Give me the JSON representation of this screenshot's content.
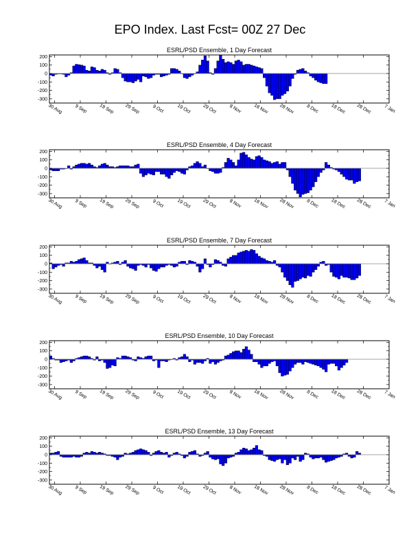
{
  "title": "EPO Index. Last Fcst= 00Z 27 Dec",
  "colors": {
    "bar_fill": "#0000ee",
    "bar_edge": "#000000",
    "axis": "#000000",
    "zero_line": "#888888"
  },
  "chart_data": [
    {
      "type": "bar",
      "title": "ESRL/PSD Ensemble, 1 Day Forecast",
      "ylim": [
        -350,
        220
      ],
      "yticks": [
        -300,
        -200,
        -100,
        0,
        100,
        200
      ],
      "x_start": "2013-08-28",
      "xtick_labels": [
        "30 Aug",
        "9 Sep",
        "19 Sep",
        "29 Sep",
        "9 Oct",
        "19 Oct",
        "29 Oct",
        "8 Nov",
        "18 Nov",
        "28 Nov",
        "8 Dec",
        "18 Dec",
        "28 Dec",
        "7 Jan"
      ],
      "values": [
        -20,
        -30,
        -10,
        -5,
        -5,
        -10,
        -40,
        -20,
        10,
        90,
        110,
        105,
        100,
        90,
        40,
        30,
        80,
        70,
        40,
        30,
        50,
        40,
        10,
        -10,
        10,
        60,
        50,
        10,
        -50,
        -90,
        -100,
        -100,
        -110,
        -90,
        -70,
        -100,
        -30,
        -40,
        -60,
        -50,
        -20,
        -10,
        -10,
        -40,
        -30,
        -20,
        -10,
        60,
        60,
        50,
        30,
        0,
        -50,
        -60,
        -40,
        -20,
        0,
        20,
        100,
        160,
        210,
        150,
        10,
        -10,
        60,
        150,
        220,
        170,
        130,
        140,
        130,
        110,
        150,
        160,
        140,
        100,
        110,
        110,
        100,
        90,
        80,
        70,
        60,
        -50,
        -150,
        -230,
        -260,
        -310,
        -300,
        -300,
        -260,
        -240,
        -210,
        -150,
        -60,
        -10,
        40,
        50,
        60,
        30,
        10,
        -30,
        -50,
        -80,
        -100,
        -110,
        -120,
        -120
      ]
    },
    {
      "type": "bar",
      "title": "ESRL/PSD Ensemble, 4 Day Forecast",
      "ylim": [
        -350,
        220
      ],
      "yticks": [
        -300,
        -200,
        -100,
        0,
        100,
        200
      ],
      "x_start": "2013-08-28",
      "xtick_labels": [
        "30 Aug",
        "9 Sep",
        "19 Sep",
        "29 Sep",
        "9 Oct",
        "19 Oct",
        "29 Oct",
        "8 Nov",
        "18 Nov",
        "28 Nov",
        "8 Dec",
        "18 Dec",
        "28 Dec",
        "7 Jan"
      ],
      "values": [
        -20,
        -30,
        -30,
        -30,
        -10,
        -10,
        0,
        30,
        -10,
        20,
        40,
        50,
        60,
        60,
        50,
        60,
        40,
        20,
        10,
        30,
        50,
        60,
        40,
        20,
        20,
        10,
        20,
        30,
        30,
        30,
        30,
        20,
        20,
        40,
        50,
        -60,
        -100,
        -80,
        -60,
        -70,
        -80,
        -40,
        -40,
        -70,
        -70,
        -100,
        -120,
        -80,
        -50,
        -30,
        -40,
        -60,
        -70,
        -20,
        20,
        30,
        60,
        80,
        60,
        20,
        40,
        0,
        -30,
        -40,
        -60,
        -60,
        -50,
        10,
        70,
        120,
        100,
        70,
        30,
        100,
        180,
        190,
        160,
        130,
        110,
        100,
        140,
        150,
        130,
        100,
        90,
        80,
        60,
        70,
        80,
        50,
        70,
        70,
        -20,
        -100,
        -180,
        -260,
        -300,
        -340,
        -310,
        -300,
        -290,
        -260,
        -220,
        -160,
        -100,
        -50,
        -20,
        70,
        40,
        10,
        -10,
        -20,
        -40,
        -70,
        -100,
        -130,
        -140,
        -140,
        -180,
        -160,
        -150
      ]
    },
    {
      "type": "bar",
      "title": "ESRL/PSD Ensemble, 7 Day Forecast",
      "ylim": [
        -350,
        220
      ],
      "yticks": [
        -300,
        -200,
        -100,
        0,
        100,
        200
      ],
      "x_start": "2013-08-28",
      "xtick_labels": [
        "30 Aug",
        "9 Sep",
        "19 Sep",
        "29 Sep",
        "9 Oct",
        "19 Oct",
        "29 Oct",
        "8 Nov",
        "18 Nov",
        "28 Nov",
        "8 Dec",
        "18 Dec",
        "28 Dec",
        "7 Jan"
      ],
      "values": [
        10,
        -60,
        -40,
        -20,
        -10,
        -30,
        10,
        10,
        30,
        20,
        30,
        50,
        60,
        70,
        40,
        10,
        10,
        -20,
        -50,
        -30,
        -70,
        -100,
        20,
        0,
        10,
        20,
        30,
        -10,
        20,
        40,
        -30,
        -50,
        -60,
        -80,
        -20,
        -10,
        -20,
        -40,
        -10,
        -50,
        -80,
        -90,
        -60,
        -40,
        -40,
        -20,
        -10,
        -20,
        -40,
        -30,
        20,
        30,
        30,
        -10,
        40,
        30,
        20,
        -30,
        -100,
        -60,
        60,
        -10,
        -40,
        -10,
        50,
        40,
        20,
        -20,
        -30,
        60,
        80,
        100,
        100,
        130,
        140,
        150,
        160,
        150,
        170,
        160,
        120,
        90,
        70,
        60,
        40,
        30,
        20,
        40,
        -20,
        -40,
        -100,
        -160,
        -200,
        -250,
        -280,
        -210,
        -200,
        -180,
        -160,
        -170,
        -140,
        -150,
        -100,
        -70,
        -30,
        20,
        30,
        -20,
        -10,
        -100,
        -150,
        -160,
        -180,
        -140,
        -160,
        -160,
        -170,
        -190,
        -190,
        -170,
        -140
      ]
    },
    {
      "type": "bar",
      "title": "ESRL/PSD Ensemble, 10 Day Forecast",
      "ylim": [
        -350,
        220
      ],
      "yticks": [
        -300,
        -200,
        -100,
        0,
        100,
        200
      ],
      "x_start": "2013-08-28",
      "xtick_labels": [
        "30 Aug",
        "9 Sep",
        "19 Sep",
        "29 Sep",
        "9 Oct",
        "19 Oct",
        "29 Oct",
        "8 Nov",
        "18 Nov",
        "28 Nov",
        "8 Dec",
        "18 Dec",
        "28 Dec",
        "7 Jan"
      ],
      "values": [
        40,
        10,
        -10,
        -10,
        -40,
        -30,
        -20,
        -10,
        -40,
        -20,
        10,
        20,
        30,
        40,
        40,
        30,
        10,
        -10,
        30,
        -20,
        -10,
        -40,
        -110,
        -100,
        -70,
        -80,
        20,
        10,
        40,
        40,
        30,
        20,
        -10,
        -20,
        30,
        20,
        10,
        30,
        40,
        40,
        -20,
        -10,
        -100,
        -20,
        -20,
        -30,
        -10,
        0,
        10,
        -10,
        20,
        30,
        60,
        30,
        -30,
        -10,
        -60,
        -40,
        -40,
        -50,
        -20,
        10,
        -50,
        -30,
        -60,
        -40,
        -20,
        -10,
        40,
        50,
        70,
        90,
        100,
        100,
        80,
        120,
        150,
        110,
        60,
        -30,
        -30,
        -60,
        -100,
        -80,
        -80,
        -50,
        -30,
        -20,
        -80,
        -160,
        -200,
        -190,
        -180,
        -140,
        -100,
        -60,
        -40,
        -40,
        -60,
        -30,
        -40,
        -50,
        -60,
        -70,
        -80,
        -100,
        -120,
        -150,
        -60,
        -50,
        -50,
        -80,
        -130,
        -100,
        -70,
        -40
      ]
    },
    {
      "type": "bar",
      "title": "ESRL/PSD Ensemble, 13 Day Forecast",
      "ylim": [
        -350,
        220
      ],
      "yticks": [
        -300,
        -200,
        -100,
        0,
        100,
        200
      ],
      "x_start": "2013-08-28",
      "xtick_labels": [
        "30 Aug",
        "9 Sep",
        "19 Sep",
        "29 Sep",
        "9 Oct",
        "19 Oct",
        "29 Oct",
        "8 Nov",
        "18 Nov",
        "28 Nov",
        "8 Dec",
        "18 Dec",
        "28 Dec",
        "7 Jan"
      ],
      "values": [
        20,
        20,
        30,
        40,
        -20,
        -30,
        -30,
        -30,
        -30,
        -20,
        -30,
        -30,
        -20,
        20,
        30,
        20,
        40,
        30,
        20,
        30,
        20,
        10,
        -10,
        -10,
        -20,
        -30,
        -60,
        -30,
        -20,
        20,
        10,
        20,
        30,
        50,
        60,
        70,
        60,
        50,
        30,
        -10,
        20,
        40,
        50,
        30,
        20,
        30,
        -30,
        -10,
        20,
        30,
        10,
        -10,
        -40,
        -20,
        30,
        40,
        50,
        10,
        -20,
        -10,
        20,
        40,
        -30,
        -50,
        -60,
        -50,
        -110,
        -130,
        -100,
        -40,
        -30,
        -20,
        20,
        30,
        60,
        80,
        70,
        50,
        60,
        80,
        110,
        60,
        50,
        -10,
        -20,
        -60,
        -70,
        -80,
        -60,
        -50,
        -100,
        -60,
        -120,
        -100,
        -40,
        -60,
        -20,
        -80,
        -60,
        20,
        10,
        -30,
        -50,
        -40,
        -40,
        -30,
        -60,
        -90,
        -80,
        -70,
        -60,
        -40,
        -30,
        -20,
        10,
        20,
        -20,
        -40,
        -30,
        40,
        20
      ]
    }
  ]
}
